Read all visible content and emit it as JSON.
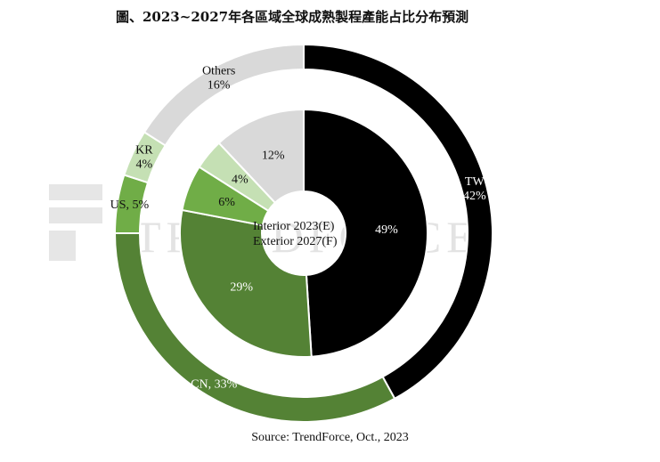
{
  "title": "圖、2023~2027年各區域全球成熟製程產能占比分布預測",
  "source": "Source: TrendForce, Oct., 2023",
  "watermark": "TRENDFORCE",
  "center_labels": [
    "Interior  2023(E)",
    "Exterior 2027(F)"
  ],
  "colors": {
    "TW": "#000000",
    "CN": "#548235",
    "US": "#70ad47",
    "KR": "#c5e0b4",
    "Others": "#d9d9d9"
  },
  "chart_data": {
    "type": "pie",
    "subtype": "double-doughnut",
    "categories": [
      "TW",
      "CN",
      "US",
      "KR",
      "Others"
    ],
    "series": [
      {
        "name": "2023(E)",
        "ring": "interior",
        "values": [
          49,
          29,
          6,
          4,
          12
        ]
      },
      {
        "name": "2027(F)",
        "ring": "exterior",
        "values": [
          42,
          33,
          5,
          4,
          16
        ]
      }
    ],
    "outer_labels": [
      "TW\n42%",
      "CN, 33%",
      "US, 5%",
      "KR\n4%",
      "Others\n16%"
    ],
    "inner_labels": [
      "49%",
      "29%",
      "6%",
      "4%",
      "12%"
    ]
  }
}
